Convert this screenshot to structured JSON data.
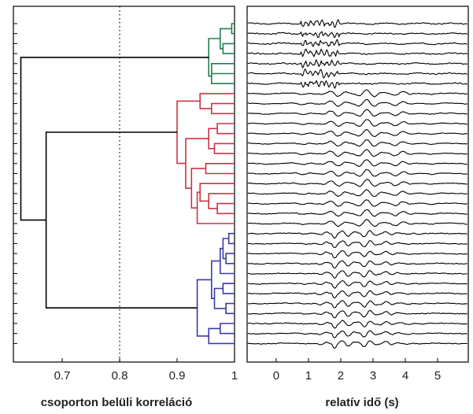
{
  "chart_data": [
    {
      "type": "dendrogram",
      "xlabel": "csoporton belüli korreláció",
      "xlim": [
        0.615,
        1.0
      ],
      "xticks": [
        0.7,
        0.8,
        0.9,
        1
      ],
      "xtick_labels": [
        "0.7",
        "0.8",
        "0.9",
        "1"
      ],
      "cut_line": 0.8,
      "leaf_count": 33,
      "grid": false,
      "clusters": [
        {
          "color": "#208050",
          "leaves": 7,
          "merge_value": 0.955
        },
        {
          "color": "#cc3344",
          "leaves": 14,
          "merge_value": 0.9
        },
        {
          "color": "#3b3ba8",
          "leaves": 12,
          "merge_value": 0.935
        }
      ],
      "links": [
        {
          "color": "#208050",
          "a": 0,
          "b": 1,
          "value": 0.995
        },
        {
          "color": "#208050",
          "a": 2,
          "b": 3,
          "value": 0.98
        },
        {
          "color": "#208050",
          "a": 100,
          "b": 101,
          "value": 0.975
        },
        {
          "color": "#208050",
          "a": 4,
          "b": 5,
          "value": 0.96
        },
        {
          "color": "#208050",
          "a": 103,
          "b": 6,
          "value": 0.96
        },
        {
          "color": "#208050",
          "a": 102,
          "b": 104,
          "value": 0.955
        },
        {
          "color": "#cc3344",
          "a": 8,
          "b": 9,
          "value": 0.96
        },
        {
          "color": "#cc3344",
          "a": 7,
          "b": 106,
          "value": 0.94
        },
        {
          "color": "#cc3344",
          "a": 10,
          "b": 11,
          "value": 0.97
        },
        {
          "color": "#cc3344",
          "a": 12,
          "b": 13,
          "value": 0.965
        },
        {
          "color": "#cc3344",
          "a": 108,
          "b": 109,
          "value": 0.955
        },
        {
          "color": "#cc3344",
          "a": 14,
          "b": 15,
          "value": 0.95
        },
        {
          "color": "#cc3344",
          "a": 18,
          "b": 19,
          "value": 0.97
        },
        {
          "color": "#cc3344",
          "a": 17,
          "b": 112,
          "value": 0.955
        },
        {
          "color": "#cc3344",
          "a": 16,
          "b": 113,
          "value": 0.94
        },
        {
          "color": "#cc3344",
          "a": 114,
          "b": 20,
          "value": 0.935
        },
        {
          "color": "#cc3344",
          "a": 111,
          "b": 115,
          "value": 0.925
        },
        {
          "color": "#cc3344",
          "a": 110,
          "b": 116,
          "value": 0.915
        },
        {
          "color": "#cc3344",
          "a": 107,
          "b": 117,
          "value": 0.9
        },
        {
          "color": "#3b3ba8",
          "a": 21,
          "b": 22,
          "value": 0.99
        },
        {
          "color": "#3b3ba8",
          "a": 23,
          "b": 24,
          "value": 0.985
        },
        {
          "color": "#3b3ba8",
          "a": 119,
          "b": 120,
          "value": 0.98
        },
        {
          "color": "#3b3ba8",
          "a": 121,
          "b": 25,
          "value": 0.975
        },
        {
          "color": "#3b3ba8",
          "a": 26,
          "b": 27,
          "value": 0.98
        },
        {
          "color": "#3b3ba8",
          "a": 28,
          "b": 29,
          "value": 0.985
        },
        {
          "color": "#3b3ba8",
          "a": 123,
          "b": 124,
          "value": 0.965
        },
        {
          "color": "#3b3ba8",
          "a": 122,
          "b": 125,
          "value": 0.96
        },
        {
          "color": "#3b3ba8",
          "a": 30,
          "b": 31,
          "value": 0.975
        },
        {
          "color": "#3b3ba8",
          "a": 127,
          "b": 32,
          "value": 0.955
        },
        {
          "color": "#3b3ba8",
          "a": 126,
          "b": 128,
          "value": 0.935
        },
        {
          "color": "#000000",
          "a": 118,
          "b": 129,
          "value": 0.672
        },
        {
          "color": "#000000",
          "a": 105,
          "b": 130,
          "value": 0.628
        }
      ]
    },
    {
      "type": "line",
      "title": "",
      "xlabel": "relatív idő (s)",
      "ylabel": "",
      "xlim": [
        -0.9,
        5.95
      ],
      "xticks": [
        0,
        1,
        2,
        3,
        4,
        5
      ],
      "xtick_labels": [
        "0",
        "1",
        "2",
        "3",
        "4",
        "5"
      ],
      "trace_count": 33,
      "sample_interval_s": 0.025,
      "grid": false,
      "legend": "none"
    }
  ]
}
